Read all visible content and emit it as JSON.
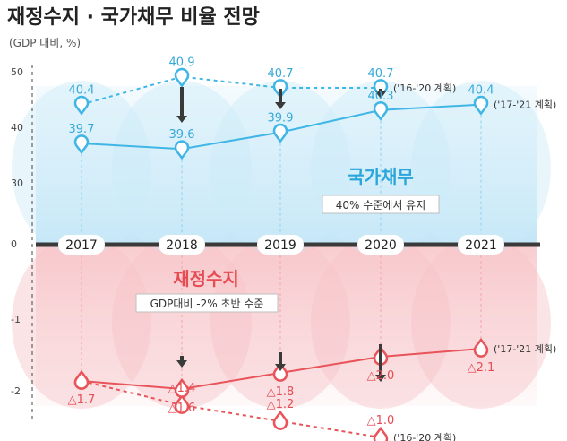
{
  "title": "재정수지 · 국가채무 비율 전망",
  "unit": "(GDP 대비, %)",
  "colors": {
    "debt": "#3fb6e6",
    "debt_text": "#35a8da",
    "balance": "#e8545a",
    "balance_text": "#e44d54",
    "axis": "#3a3a3a",
    "arrow": "#3a3a3a"
  },
  "chart_data": {
    "type": "line",
    "categories": [
      "2017",
      "2018",
      "2019",
      "2020",
      "2021"
    ],
    "yticks": [
      "50",
      "40",
      "30",
      "0",
      "-1",
      "-2"
    ],
    "series": [
      {
        "key": "debt_plan_16_20",
        "label": "('16-'20 계획)",
        "values": [
          40.4,
          40.9,
          40.7,
          40.7,
          null
        ],
        "display": [
          "40.4",
          "40.9",
          "40.7",
          "40.7",
          ""
        ],
        "style": "dashed",
        "group": "debt"
      },
      {
        "key": "debt_plan_17_21",
        "label": "('17-'21 계획)",
        "values": [
          39.7,
          39.6,
          39.9,
          40.3,
          40.4
        ],
        "display": [
          "39.7",
          "39.6",
          "39.9",
          "40.3",
          "40.4"
        ],
        "style": "solid",
        "group": "debt"
      },
      {
        "key": "balance_plan_16_20",
        "label": "('16-'20 계획)",
        "values": [
          -1.7,
          -1.4,
          -1.2,
          -1.0,
          null
        ],
        "display": [
          "",
          "△1.4",
          "△1.2",
          "△1.0",
          ""
        ],
        "style": "dashed",
        "group": "balance"
      },
      {
        "key": "balance_plan_17_21",
        "label": "('17-'21 계획)",
        "values": [
          -1.7,
          -1.6,
          -1.8,
          -2.0,
          -2.1
        ],
        "display": [
          "△1.7",
          "△1.6",
          "△1.8",
          "△2.0",
          "△2.1"
        ],
        "style": "solid",
        "group": "balance"
      }
    ],
    "annotations": {
      "debt_name": "국가채무",
      "debt_note": "40% 수준에서 유지",
      "balance_name": "재정수지",
      "balance_note": "GDP대비 -2% 초반 수준"
    }
  }
}
